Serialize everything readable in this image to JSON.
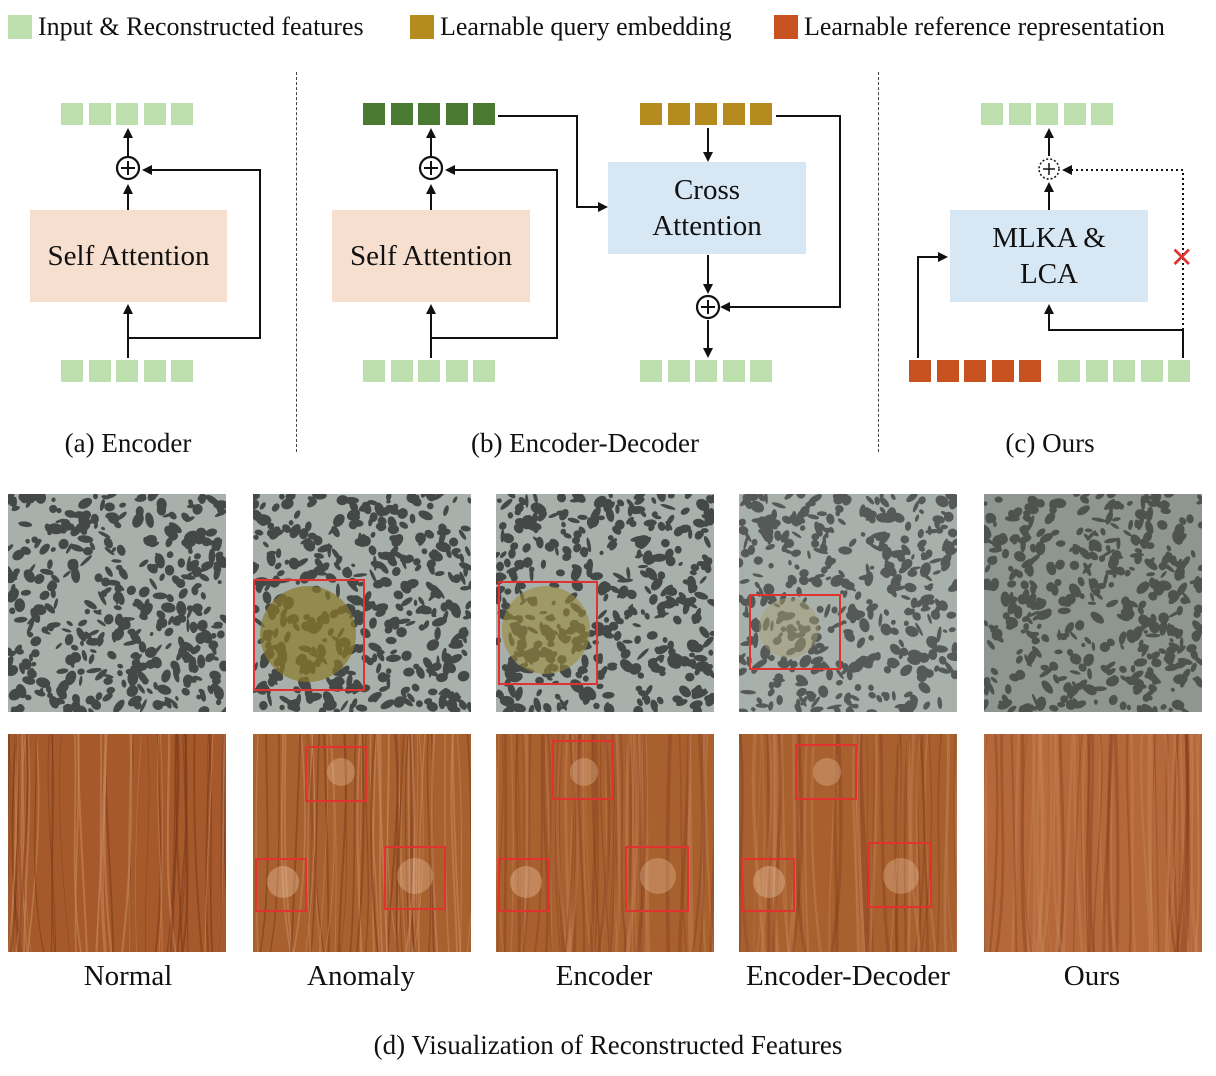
{
  "legend": [
    {
      "label": "Input & Reconstructed features",
      "color": "#bddfae"
    },
    {
      "label": "Learnable query embedding",
      "color": "#b58a1f"
    },
    {
      "label": "Learnable reference representation",
      "color": "#c8521f"
    }
  ],
  "colors": {
    "input_feature": "#bddfae",
    "dark_feature": "#4a7a32",
    "query_embedding": "#b58a1f",
    "reference_representation": "#c8521f",
    "self_attention_box": "#f7dfcf",
    "cross_attention_box": "#d7e7f4",
    "anomaly_marker": "#e0322f"
  },
  "panel_a": {
    "block_label": "Self Attention",
    "caption": "(a) Encoder"
  },
  "panel_b": {
    "block_label": "Self Attention",
    "cross_label_line1": "Cross",
    "cross_label_line2": "Attention",
    "caption": "(b) Encoder-Decoder"
  },
  "panel_c": {
    "block_label_line1": "MLKA &",
    "block_label_line2": "LCA",
    "cut_mark": "✕",
    "caption": "(c) Ours"
  },
  "panel_d": {
    "columns": [
      "Normal",
      "Anomaly",
      "Encoder",
      "Encoder-Decoder",
      "Ours"
    ],
    "caption": "(d) Visualization of Reconstructed Features",
    "rows": [
      "granite-texture",
      "wood-texture"
    ]
  }
}
